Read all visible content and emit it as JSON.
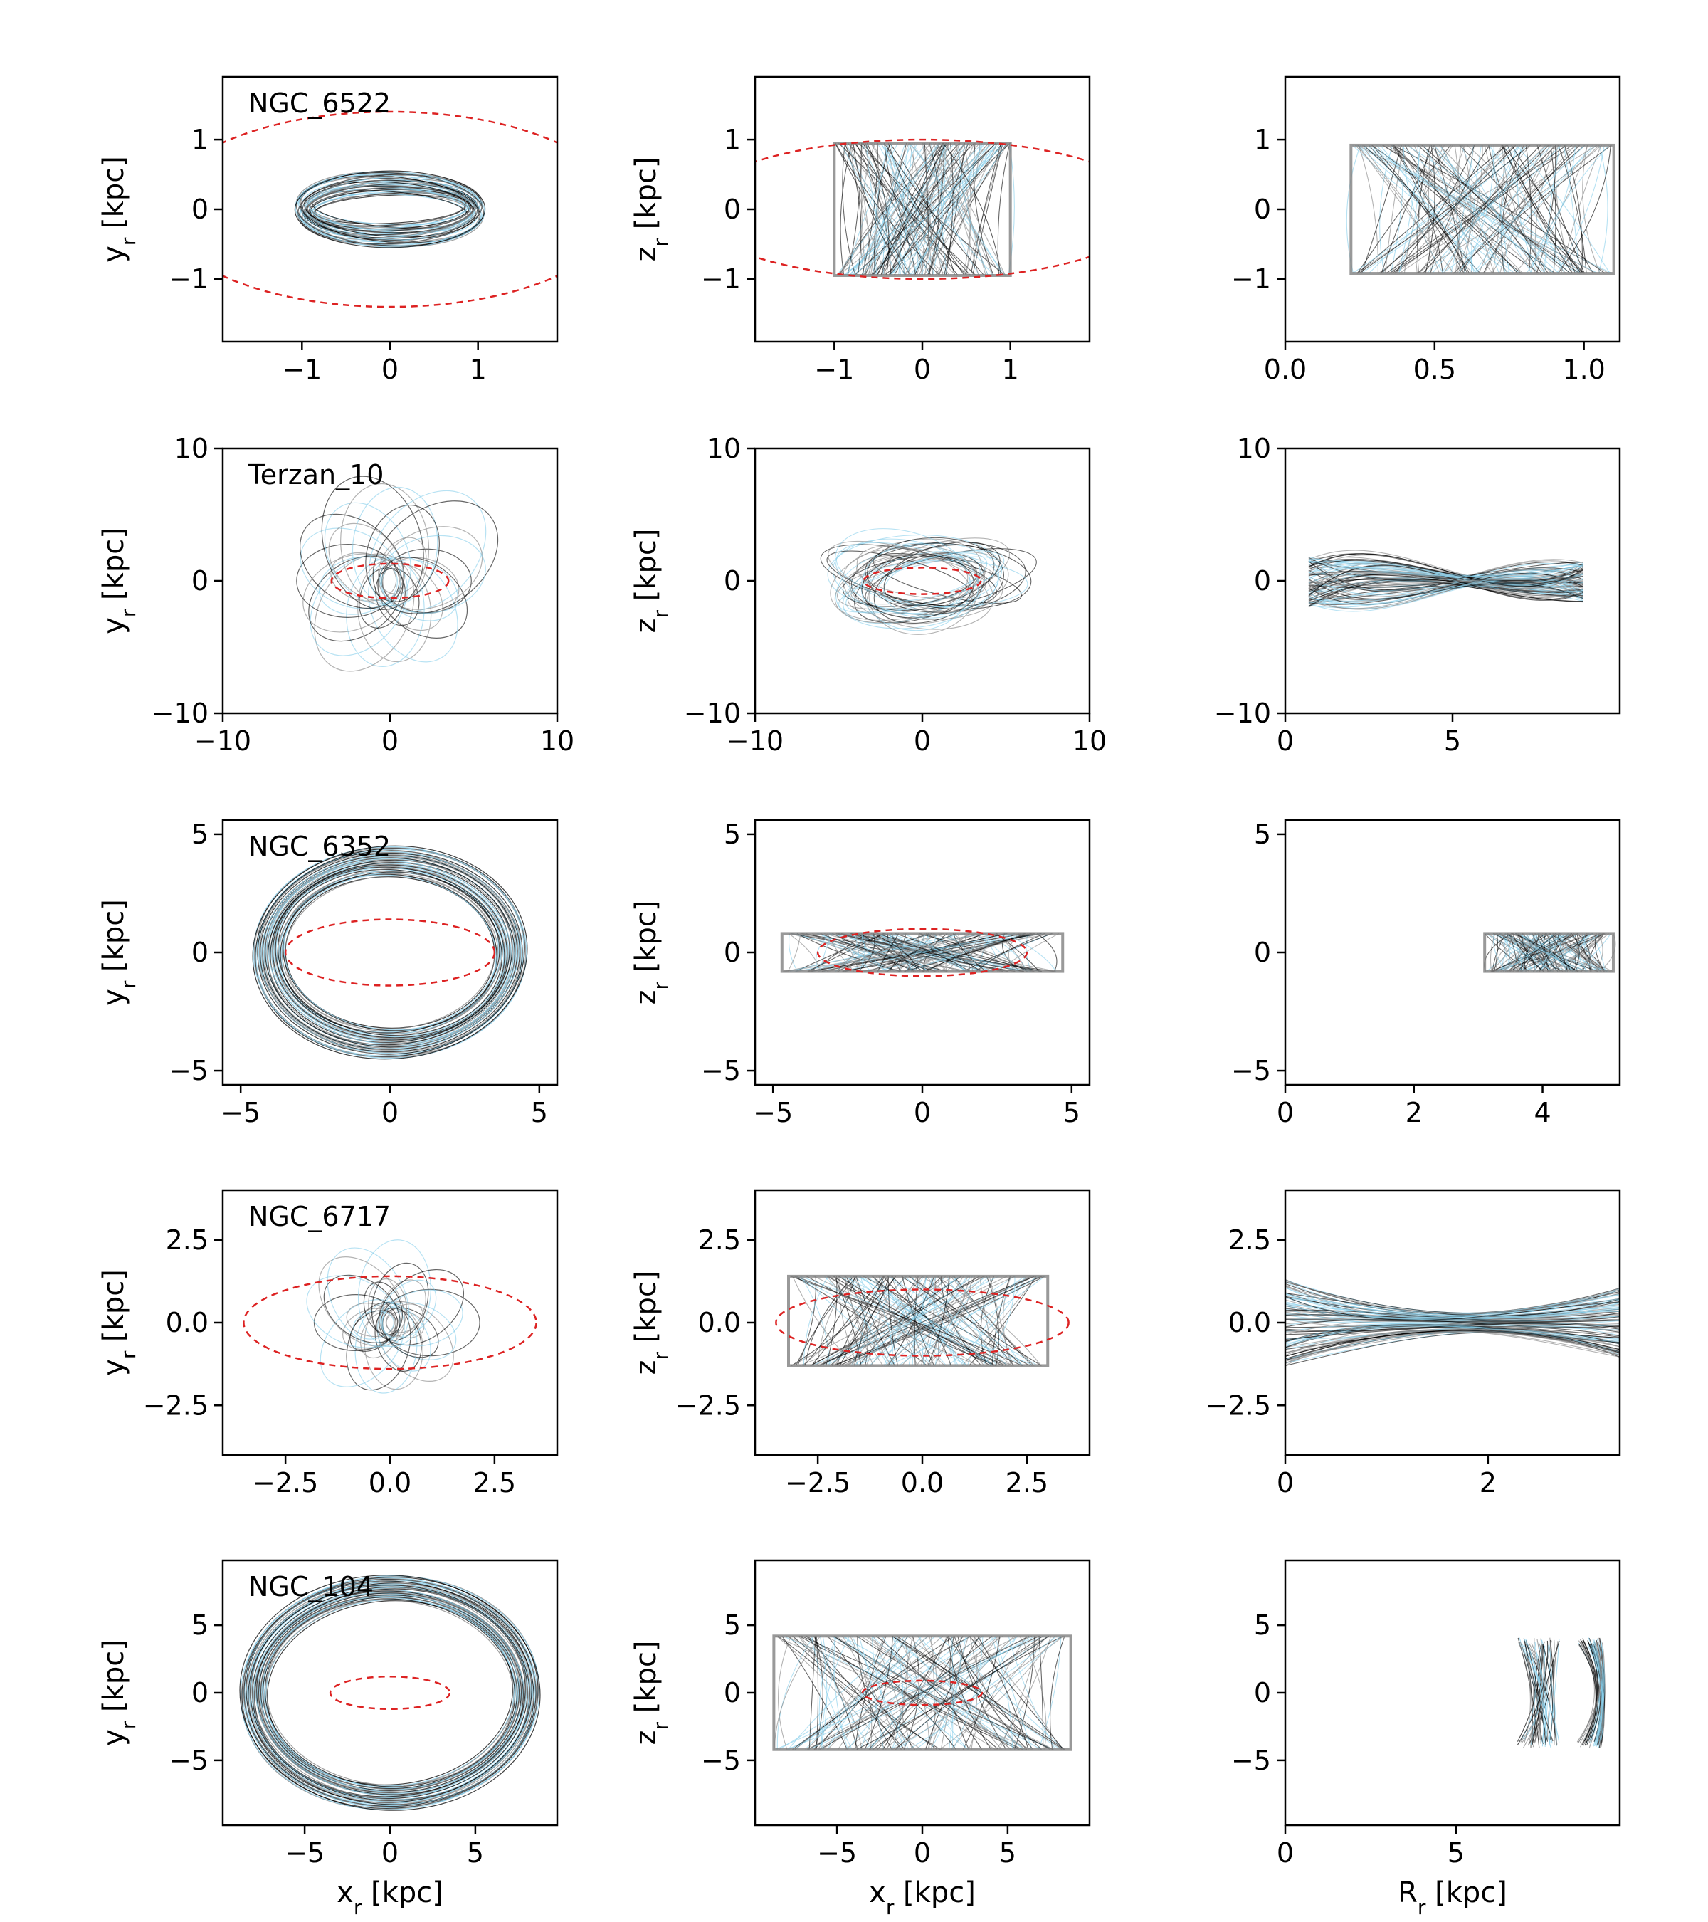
{
  "figure": {
    "colors": {
      "orbit_dark": "#000000",
      "orbit_mid": "#808080",
      "orbit_light": "#87ceeb",
      "bar_outline": "#dd2222",
      "axes": "#000000"
    }
  },
  "chart_data": [
    {
      "type": "line",
      "row": 0,
      "col": 0,
      "name": "NGC_6522",
      "ylabel": "y_r [kpc]",
      "xlabel": "",
      "xlim": [
        -1.9,
        1.9
      ],
      "ylim": [
        -1.9,
        1.9
      ],
      "xticks": [
        -1,
        0,
        1
      ],
      "xticklabels": [
        "−1",
        "0",
        "1"
      ],
      "yticks": [
        -1,
        0,
        1
      ],
      "yticklabels": [
        "−1",
        "0",
        "1"
      ],
      "orbit": {
        "kind": "ring",
        "rx": 1.08,
        "ry": 0.55,
        "rx_in": 0.85,
        "ry_in": 0.2
      },
      "bar_outline": {
        "rx": 2.6,
        "ry": 1.4
      }
    },
    {
      "type": "line",
      "row": 0,
      "col": 1,
      "ylabel": "z_r [kpc]",
      "xlabel": "",
      "xlim": [
        -1.9,
        1.9
      ],
      "ylim": [
        -1.9,
        1.9
      ],
      "xticks": [
        -1,
        0,
        1
      ],
      "xticklabels": [
        "−1",
        "0",
        "1"
      ],
      "yticks": [
        -1,
        0,
        1
      ],
      "yticklabels": [
        "−1",
        "0",
        "1"
      ],
      "orbit": {
        "kind": "box",
        "x0": -1.0,
        "x1": 1.0,
        "y0": -0.95,
        "y1": 0.95
      },
      "bar_outline": {
        "rx": 2.6,
        "ry": 1.0
      }
    },
    {
      "type": "line",
      "row": 0,
      "col": 2,
      "ylabel": "",
      "xlabel": "",
      "xlim": [
        0,
        1.12
      ],
      "ylim": [
        -1.9,
        1.9
      ],
      "xticks": [
        0,
        0.5,
        1.0
      ],
      "xticklabels": [
        "0.0",
        "0.5",
        "1.0"
      ],
      "yticks": [
        -1,
        0,
        1
      ],
      "yticklabels": [
        "−1",
        "0",
        "1"
      ],
      "orbit": {
        "kind": "box",
        "x0": 0.22,
        "x1": 1.1,
        "y0": -0.92,
        "y1": 0.92
      }
    },
    {
      "type": "line",
      "row": 1,
      "col": 0,
      "name": "Terzan_10",
      "ylabel": "y_r [kpc]",
      "xlabel": "",
      "xlim": [
        -10,
        10
      ],
      "ylim": [
        -10,
        10
      ],
      "xticks": [
        -10,
        0,
        10
      ],
      "xticklabels": [
        "−10",
        "0",
        "10"
      ],
      "yticks": [
        -10,
        0,
        10
      ],
      "yticklabels": [
        "−10",
        "0",
        "10"
      ],
      "orbit": {
        "kind": "rosette",
        "rmin": 0.8,
        "rmax": 9.5,
        "sy": 0.9
      },
      "bar_outline": {
        "rx": 3.5,
        "ry": 1.3
      }
    },
    {
      "type": "line",
      "row": 1,
      "col": 1,
      "ylabel": "z_r [kpc]",
      "xlabel": "",
      "xlim": [
        -10,
        10
      ],
      "ylim": [
        -10,
        10
      ],
      "xticks": [
        -10,
        0,
        10
      ],
      "xticklabels": [
        "−10",
        "0",
        "10"
      ],
      "yticks": [
        -10,
        0,
        10
      ],
      "yticklabels": [
        "−10",
        "0",
        "10"
      ],
      "orbit": {
        "kind": "lissajous",
        "ax": 9.0,
        "ay": 5.5
      },
      "bar_outline": {
        "rx": 3.5,
        "ry": 1.0
      }
    },
    {
      "type": "line",
      "row": 1,
      "col": 2,
      "ylabel": "",
      "xlabel": "",
      "xlim": [
        0,
        10
      ],
      "ylim": [
        -10,
        10
      ],
      "xticks": [
        0,
        5
      ],
      "xticklabels": [
        "0",
        "5"
      ],
      "yticks": [
        -10,
        0,
        10
      ],
      "yticklabels": [
        "−10",
        "0",
        "10"
      ],
      "orbit": {
        "kind": "fan",
        "x0": 0.7,
        "x1": 8.9,
        "h0": 2.0,
        "h1": 5.3
      }
    },
    {
      "type": "line",
      "row": 2,
      "col": 0,
      "name": "NGC_6352",
      "ylabel": "y_r [kpc]",
      "xlabel": "",
      "xlim": [
        -5.6,
        5.6
      ],
      "ylim": [
        -5.6,
        5.6
      ],
      "xticks": [
        -5,
        0,
        5
      ],
      "xticklabels": [
        "−5",
        "0",
        "5"
      ],
      "yticks": [
        -5,
        0,
        5
      ],
      "yticklabels": [
        "−5",
        "0",
        "5"
      ],
      "orbit": {
        "kind": "ring",
        "rx": 4.6,
        "ry": 4.5,
        "rx_in": 3.5,
        "ry_in": 3.2
      },
      "bar_outline": {
        "rx": 3.5,
        "ry": 1.4
      }
    },
    {
      "type": "line",
      "row": 2,
      "col": 1,
      "ylabel": "z_r [kpc]",
      "xlabel": "",
      "xlim": [
        -5.6,
        5.6
      ],
      "ylim": [
        -5.6,
        5.6
      ],
      "xticks": [
        -5,
        0,
        5
      ],
      "xticklabels": [
        "−5",
        "0",
        "5"
      ],
      "yticks": [
        -5,
        0,
        5
      ],
      "yticklabels": [
        "−5",
        "0",
        "5"
      ],
      "orbit": {
        "kind": "box",
        "x0": -4.7,
        "x1": 4.7,
        "y0": -0.8,
        "y1": 0.8
      },
      "bar_outline": {
        "rx": 3.5,
        "ry": 1.0
      }
    },
    {
      "type": "line",
      "row": 2,
      "col": 2,
      "ylabel": "",
      "xlabel": "",
      "xlim": [
        0,
        5.2
      ],
      "ylim": [
        -5.6,
        5.6
      ],
      "xticks": [
        0,
        2,
        4
      ],
      "xticklabels": [
        "0",
        "2",
        "4"
      ],
      "yticks": [
        -5,
        0,
        5
      ],
      "yticklabels": [
        "−5",
        "0",
        "5"
      ],
      "orbit": {
        "kind": "box",
        "x0": 3.1,
        "x1": 5.1,
        "y0": -0.8,
        "y1": 0.8
      }
    },
    {
      "type": "line",
      "row": 3,
      "col": 0,
      "name": "NGC_6717",
      "ylabel": "y_r [kpc]",
      "xlabel": "",
      "xlim": [
        -4.0,
        4.0
      ],
      "ylim": [
        -4.0,
        4.0
      ],
      "xticks": [
        -2.5,
        0.0,
        2.5
      ],
      "xticklabels": [
        "−2.5",
        "0.0",
        "2.5"
      ],
      "yticks": [
        -2.5,
        0.0,
        2.5
      ],
      "yticklabels": [
        "−2.5",
        "0.0",
        "2.5"
      ],
      "orbit": {
        "kind": "rosette",
        "rmin": 0.2,
        "rmax": 3.0,
        "sy": 0.85
      },
      "bar_outline": {
        "rx": 3.5,
        "ry": 1.4
      }
    },
    {
      "type": "line",
      "row": 3,
      "col": 1,
      "ylabel": "z_r [kpc]",
      "xlabel": "",
      "xlim": [
        -4.0,
        4.0
      ],
      "ylim": [
        -4.0,
        4.0
      ],
      "xticks": [
        -2.5,
        0.0,
        2.5
      ],
      "xticklabels": [
        "−2.5",
        "0.0",
        "2.5"
      ],
      "yticks": [
        -2.5,
        0.0,
        2.5
      ],
      "yticklabels": [
        "−2.5",
        "0.0",
        "2.5"
      ],
      "orbit": {
        "kind": "box",
        "x0": -3.2,
        "x1": 3.0,
        "y0": -1.3,
        "y1": 1.4
      },
      "bar_outline": {
        "rx": 3.5,
        "ry": 1.0
      }
    },
    {
      "type": "line",
      "row": 3,
      "col": 2,
      "ylabel": "",
      "xlabel": "",
      "xlim": [
        0,
        3.3
      ],
      "ylim": [
        -4.0,
        4.0
      ],
      "xticks": [
        0,
        2
      ],
      "xticklabels": [
        "0",
        "2"
      ],
      "yticks": [
        -2.5,
        0.0,
        2.5
      ],
      "yticklabels": [
        "−2.5",
        "0.0",
        "2.5"
      ],
      "orbit": {
        "kind": "fan",
        "x0": 0.0,
        "x1": 3.3,
        "h0": 1.3,
        "h1": 0.6
      }
    },
    {
      "type": "line",
      "row": 4,
      "col": 0,
      "name": "NGC_104",
      "ylabel": "y_r [kpc]",
      "xlabel": "x_r [kpc]",
      "xlim": [
        -9.8,
        9.8
      ],
      "ylim": [
        -9.8,
        9.8
      ],
      "xticks": [
        -5,
        0,
        5
      ],
      "xticklabels": [
        "−5",
        "0",
        "5"
      ],
      "yticks": [
        -5,
        0,
        5
      ],
      "yticklabels": [
        "−5",
        "0",
        "5"
      ],
      "orbit": {
        "kind": "ring",
        "rx": 8.8,
        "ry": 8.7,
        "rx_in": 7.2,
        "ry_in": 6.8
      },
      "bar_outline": {
        "rx": 3.5,
        "ry": 1.2
      }
    },
    {
      "type": "line",
      "row": 4,
      "col": 1,
      "ylabel": "z_r [kpc]",
      "xlabel": "x_r [kpc]",
      "xlim": [
        -9.8,
        9.8
      ],
      "ylim": [
        -9.8,
        9.8
      ],
      "xticks": [
        -5,
        0,
        5
      ],
      "xticklabels": [
        "−5",
        "0",
        "5"
      ],
      "yticks": [
        -5,
        0,
        5
      ],
      "yticklabels": [
        "−5",
        "0",
        "5"
      ],
      "orbit": {
        "kind": "box",
        "x0": -8.7,
        "x1": 8.7,
        "y0": -4.2,
        "y1": 4.2
      },
      "bar_outline": {
        "rx": 3.5,
        "ry": 0.9
      }
    },
    {
      "type": "line",
      "row": 4,
      "col": 2,
      "ylabel": "",
      "xlabel": "R_r [kpc]",
      "xlim": [
        0,
        9.8
      ],
      "ylim": [
        -9.8,
        9.8
      ],
      "xticks": [
        0,
        5
      ],
      "xticklabels": [
        "0",
        "5"
      ],
      "yticks": [
        -5,
        0,
        5
      ],
      "yticklabels": [
        "−5",
        "0",
        "5"
      ],
      "orbit": {
        "kind": "crescent",
        "x0": 6.8,
        "x1": 9.3,
        "h": 4.1
      }
    }
  ]
}
